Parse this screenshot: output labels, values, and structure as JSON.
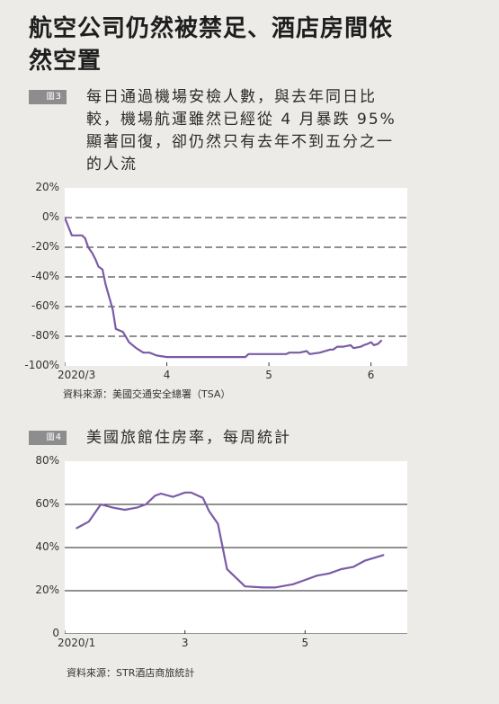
{
  "headline": "航空公司仍然被禁足、酒店房間依然空置",
  "figure3": {
    "tag_word": "圖",
    "tag_number": "3",
    "caption": "每日通過機場安檢人數，與去年同日比較，機場航運雖然已經從 4 月暴跌 95% 顯著回復，卻仍然只有去年不到五分之一的人流",
    "source": "資料來源：美國交通安全總署（TSA）"
  },
  "figure4": {
    "tag_word": "圖",
    "tag_number": "4",
    "caption": "美國旅館住房率，每周統計",
    "source": "資料來源：STR酒店商旅統計"
  },
  "colors": {
    "line": "#7b5ba6",
    "grid": "#222222",
    "background": "#ecebe7",
    "plot_background": "#ffffff",
    "tag": "#8d8d8d"
  },
  "chart_data": [
    {
      "type": "line",
      "title": "每日通過機場安檢人數，與去年同日比較",
      "xlabel": "",
      "ylabel": "",
      "x_unit": "month (2020)",
      "xlim": [
        3.0,
        6.25
      ],
      "ylim": [
        -100,
        20
      ],
      "y_ticks": [
        20,
        0,
        -20,
        -40,
        -60,
        -80,
        -100
      ],
      "y_tick_labels": [
        "20%",
        "0%",
        "-20%",
        "-40%",
        "-60%",
        "-80%",
        "-100%"
      ],
      "x_ticks": [
        3,
        4,
        5,
        6
      ],
      "x_tick_labels": [
        "2020/3",
        "4",
        "5",
        "6"
      ],
      "grid": "horizontal dashed",
      "series": [
        {
          "color": "#7b5ba6",
          "x": [
            3.0,
            3.07,
            3.1,
            3.17,
            3.2,
            3.23,
            3.27,
            3.3,
            3.33,
            3.37,
            3.4,
            3.47,
            3.5,
            3.57,
            3.63,
            3.7,
            3.77,
            3.83,
            3.9,
            4.0,
            4.13,
            4.27,
            4.4,
            4.53,
            4.67,
            4.77,
            4.8,
            4.9,
            5.0,
            5.1,
            5.17,
            5.2,
            5.3,
            5.37,
            5.4,
            5.5,
            5.6,
            5.63,
            5.67,
            5.73,
            5.8,
            5.83,
            5.9,
            5.93,
            5.97,
            6.0,
            6.03,
            6.07,
            6.1
          ],
          "y": [
            0,
            -12,
            -12,
            -12,
            -14,
            -20,
            -24,
            -28,
            -33,
            -35,
            -45,
            -62,
            -75,
            -77,
            -84,
            -88,
            -91,
            -91,
            -93,
            -94,
            -94,
            -94,
            -94,
            -94,
            -94,
            -94,
            -92,
            -92,
            -92,
            -92,
            -92,
            -91,
            -91,
            -90,
            -92,
            -91,
            -89,
            -89,
            -87,
            -87,
            -86,
            -88,
            -87,
            -86,
            -85,
            -84,
            -86,
            -85,
            -83
          ]
        }
      ]
    },
    {
      "type": "line",
      "title": "美國旅館住房率，每周統計",
      "xlabel": "",
      "ylabel": "",
      "x_unit": "month (2020)",
      "xlim": [
        1.0,
        6.7
      ],
      "ylim": [
        0,
        80
      ],
      "y_ticks": [
        80,
        60,
        40,
        20,
        0
      ],
      "y_tick_labels": [
        "80%",
        "60%",
        "40%",
        "20%",
        "0"
      ],
      "x_ticks": [
        1,
        3,
        5
      ],
      "x_tick_labels": [
        "2020/1",
        "3",
        "5"
      ],
      "grid": "horizontal solid",
      "series": [
        {
          "color": "#7b5ba6",
          "x": [
            1.2,
            1.4,
            1.6,
            1.8,
            2.0,
            2.2,
            2.35,
            2.5,
            2.6,
            2.8,
            3.0,
            3.1,
            3.3,
            3.4,
            3.55,
            3.7,
            4.0,
            4.3,
            4.5,
            4.8,
            5.0,
            5.2,
            5.4,
            5.6,
            5.8,
            6.0,
            6.3
          ],
          "y": [
            49,
            52,
            60,
            58.5,
            57.5,
            58.5,
            60,
            64,
            65,
            63.5,
            65.5,
            65.5,
            63,
            57,
            51,
            30,
            22,
            21.5,
            21.5,
            23,
            25,
            27,
            28,
            30,
            31,
            34,
            36.5
          ]
        }
      ]
    }
  ]
}
